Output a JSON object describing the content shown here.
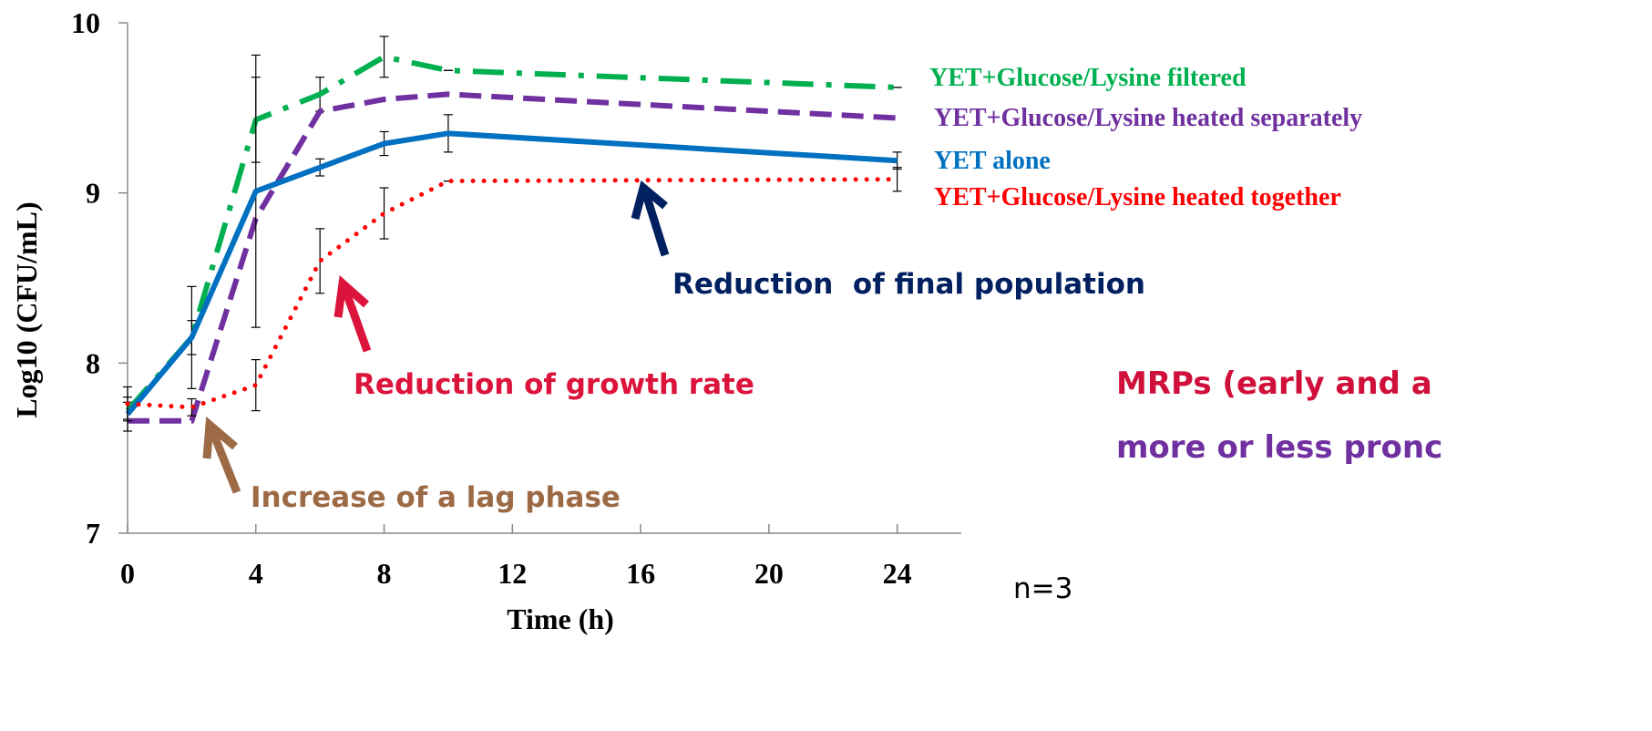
{
  "chart_data": {
    "type": "line",
    "x_label": "Time (h)",
    "y_label": "Log10 (CFU/mL)",
    "x": [
      0,
      2,
      4,
      6,
      8,
      10,
      24
    ],
    "xlim": [
      0,
      26
    ],
    "xticks": [
      0,
      4,
      8,
      12,
      16,
      20,
      24
    ],
    "ylim": [
      7,
      10
    ],
    "yticks": [
      7,
      8,
      9,
      10
    ],
    "series": [
      {
        "name": "YET+Glucose/Lysine filtered",
        "color": "#00b050",
        "style": "dashdot",
        "values": [
          7.72,
          8.15,
          9.43,
          9.58,
          9.8,
          9.72,
          9.62
        ],
        "errors": [
          0.05,
          0.1,
          0.25,
          0.1,
          0.12,
          0,
          0
        ]
      },
      {
        "name": "YET+Glucose/Lysine heated separately",
        "color": "#7030a0",
        "style": "dashed",
        "values": [
          7.66,
          7.66,
          8.85,
          9.48,
          9.55,
          9.58,
          9.44
        ]
      },
      {
        "name": "YET alone",
        "color": "#0070c0",
        "style": "solid",
        "values": [
          7.7,
          8.15,
          9.01,
          9.15,
          9.29,
          9.35,
          9.19
        ],
        "errors": [
          0.1,
          0.3,
          0.8,
          0.05,
          0.07,
          0.11,
          0.05
        ]
      },
      {
        "name": "YET+Glucose/Lysine heated together",
        "color": "#ff0000",
        "style": "dotted",
        "values": [
          7.76,
          7.74,
          7.87,
          8.6,
          8.88,
          9.07,
          9.08
        ],
        "errors": [
          0.1,
          0.05,
          0.15,
          0.19,
          0.15,
          0,
          0.07
        ]
      }
    ],
    "annotations": [
      {
        "text": "Reduction  of final population",
        "color": "#002060"
      },
      {
        "text": "Reduction of growth rate",
        "color": "#dc143c"
      },
      {
        "text": "Increase of a lag phase",
        "color": "#9c6a44"
      },
      {
        "text": "MRPs (early and a",
        "color": "#d0103a"
      },
      {
        "text": "more or less pronc",
        "color": "#7030a0"
      },
      {
        "text": "n=3",
        "color": "#000000"
      }
    ]
  }
}
